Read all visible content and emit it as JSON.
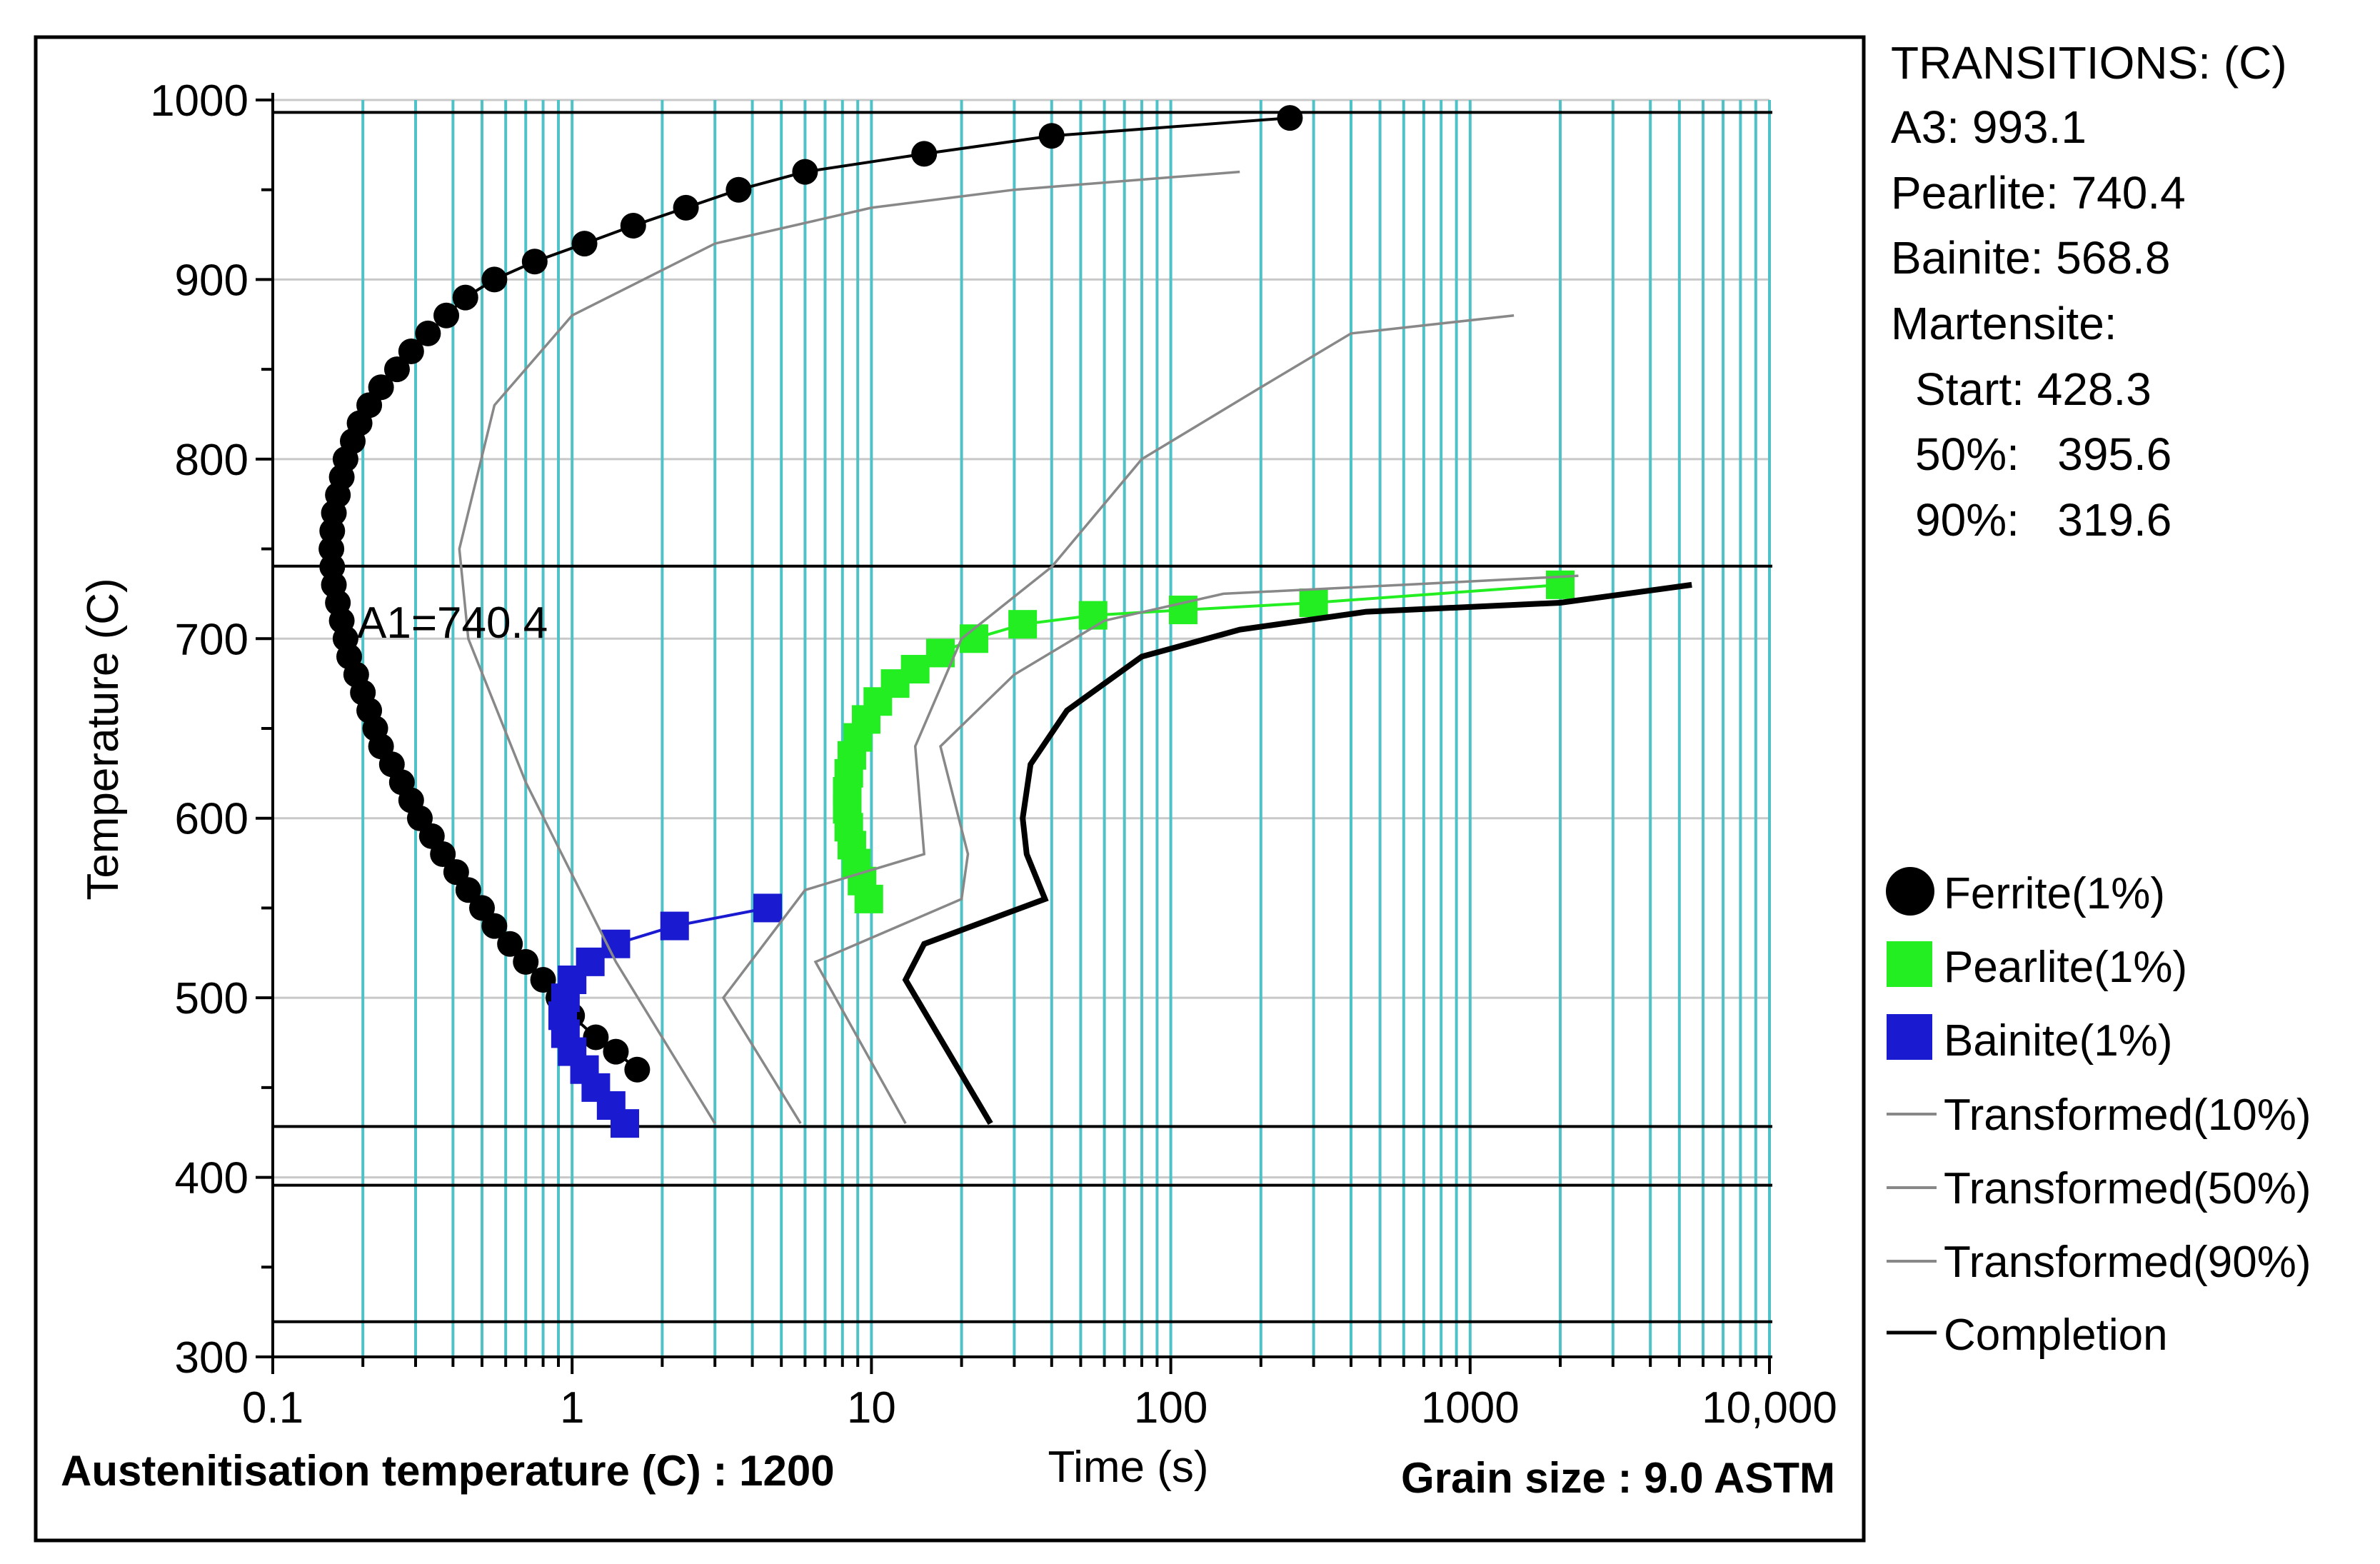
{
  "chart_data": {
    "type": "line",
    "xscale": "log",
    "xlim": [
      0.1,
      10000
    ],
    "ylim": [
      300,
      1000
    ],
    "xlabel": "Time (s)",
    "ylabel": "Temperature (C)",
    "x_ticks": [
      0.1,
      1,
      10,
      100,
      1000,
      10000
    ],
    "x_tick_labels": [
      "0.1",
      "1",
      "10",
      "100",
      "1000",
      "10,000"
    ],
    "y_ticks": [
      300,
      400,
      500,
      600,
      700,
      800,
      900,
      1000
    ],
    "y_tick_labels": [
      "300",
      "400",
      "500",
      "600",
      "700",
      "800",
      "900",
      "1000"
    ],
    "grid": true,
    "reference_lines": [
      {
        "name": "A3",
        "y": 993.1
      },
      {
        "name": "A1",
        "y": 740.4,
        "label": "A1=740.4"
      },
      {
        "name": "Ms",
        "y": 428.3
      },
      {
        "name": "M50",
        "y": 395.6
      },
      {
        "name": "M90",
        "y": 319.6
      }
    ],
    "series": [
      {
        "name": "Ferrite(1%)",
        "marker": "circle",
        "color": "#000000",
        "points": [
          [
            1.65,
            460
          ],
          [
            1.4,
            470
          ],
          [
            1.2,
            478
          ],
          [
            1.0,
            490
          ],
          [
            0.9,
            500
          ],
          [
            0.8,
            510
          ],
          [
            0.7,
            520
          ],
          [
            0.62,
            530
          ],
          [
            0.55,
            540
          ],
          [
            0.5,
            550
          ],
          [
            0.45,
            560
          ],
          [
            0.41,
            570
          ],
          [
            0.37,
            580
          ],
          [
            0.34,
            590
          ],
          [
            0.31,
            600
          ],
          [
            0.29,
            610
          ],
          [
            0.27,
            620
          ],
          [
            0.25,
            630
          ],
          [
            0.23,
            640
          ],
          [
            0.22,
            650
          ],
          [
            0.21,
            660
          ],
          [
            0.2,
            670
          ],
          [
            0.19,
            680
          ],
          [
            0.18,
            690
          ],
          [
            0.175,
            700
          ],
          [
            0.17,
            710
          ],
          [
            0.165,
            720
          ],
          [
            0.16,
            730
          ],
          [
            0.158,
            740
          ],
          [
            0.157,
            750
          ],
          [
            0.158,
            760
          ],
          [
            0.16,
            770
          ],
          [
            0.165,
            780
          ],
          [
            0.17,
            790
          ],
          [
            0.175,
            800
          ],
          [
            0.185,
            810
          ],
          [
            0.195,
            820
          ],
          [
            0.21,
            830
          ],
          [
            0.23,
            840
          ],
          [
            0.26,
            850
          ],
          [
            0.29,
            860
          ],
          [
            0.33,
            870
          ],
          [
            0.38,
            880
          ],
          [
            0.44,
            890
          ],
          [
            0.55,
            900
          ],
          [
            0.75,
            910
          ],
          [
            1.1,
            920
          ],
          [
            1.6,
            930
          ],
          [
            2.4,
            940
          ],
          [
            3.6,
            950
          ],
          [
            6,
            960
          ],
          [
            15,
            970
          ],
          [
            40,
            980
          ],
          [
            250,
            990
          ]
        ]
      },
      {
        "name": "Pearlite(1%)",
        "marker": "square",
        "color": "#22ee22",
        "points": [
          [
            9.8,
            555
          ],
          [
            9.3,
            565
          ],
          [
            8.9,
            575
          ],
          [
            8.6,
            585
          ],
          [
            8.4,
            595
          ],
          [
            8.3,
            605
          ],
          [
            8.3,
            615
          ],
          [
            8.4,
            625
          ],
          [
            8.6,
            635
          ],
          [
            9,
            645
          ],
          [
            9.6,
            655
          ],
          [
            10.5,
            665
          ],
          [
            12,
            675
          ],
          [
            14,
            683
          ],
          [
            17,
            692
          ],
          [
            22,
            700
          ],
          [
            32,
            708
          ],
          [
            55,
            713
          ],
          [
            110,
            716
          ],
          [
            300,
            720
          ],
          [
            2000,
            730
          ]
        ]
      },
      {
        "name": "Bainite(1%)",
        "marker": "square",
        "color": "#1a1ad0",
        "points": [
          [
            1.5,
            430
          ],
          [
            1.35,
            440
          ],
          [
            1.2,
            450
          ],
          [
            1.1,
            460
          ],
          [
            1.0,
            470
          ],
          [
            0.95,
            480
          ],
          [
            0.93,
            490
          ],
          [
            0.95,
            500
          ],
          [
            1.0,
            510
          ],
          [
            1.15,
            520
          ],
          [
            1.4,
            530
          ],
          [
            2.2,
            540
          ],
          [
            4.5,
            550
          ]
        ]
      },
      {
        "name": "Transformed(10%)",
        "marker": "none",
        "color": "#888888",
        "points": [
          [
            3.0,
            430
          ],
          [
            1.4,
            520
          ],
          [
            0.7,
            620
          ],
          [
            0.45,
            700
          ],
          [
            0.42,
            750
          ],
          [
            0.55,
            830
          ],
          [
            1.0,
            880
          ],
          [
            3.0,
            920
          ],
          [
            10,
            940
          ],
          [
            30,
            950
          ],
          [
            170,
            960
          ]
        ]
      },
      {
        "name": "Transformed(50%)",
        "marker": "none",
        "color": "#888888",
        "points": [
          [
            5.8,
            430
          ],
          [
            3.2,
            500
          ],
          [
            6,
            560
          ],
          [
            15,
            580
          ],
          [
            14,
            640
          ],
          [
            20,
            700
          ],
          [
            40,
            740
          ],
          [
            80,
            800
          ],
          [
            200,
            840
          ],
          [
            400,
            870
          ],
          [
            1400,
            880
          ]
        ]
      },
      {
        "name": "Transformed(90%)",
        "marker": "none",
        "color": "#888888",
        "points": [
          [
            13,
            430
          ],
          [
            6.5,
            520
          ],
          [
            20,
            555
          ],
          [
            21,
            580
          ],
          [
            17,
            640
          ],
          [
            30,
            680
          ],
          [
            60,
            710
          ],
          [
            150,
            725
          ],
          [
            600,
            730
          ],
          [
            2300,
            735
          ]
        ]
      },
      {
        "name": "Completion",
        "marker": "none",
        "color": "#000000",
        "points": [
          [
            25,
            430
          ],
          [
            13,
            510
          ],
          [
            15,
            530
          ],
          [
            38,
            555
          ],
          [
            33,
            580
          ],
          [
            32,
            600
          ],
          [
            34,
            630
          ],
          [
            45,
            660
          ],
          [
            80,
            690
          ],
          [
            170,
            705
          ],
          [
            450,
            715
          ],
          [
            2000,
            720
          ],
          [
            5500,
            730
          ]
        ]
      }
    ],
    "legend_position": "right"
  },
  "legend": [
    {
      "label": "Ferrite(1%)",
      "icon": "circle-icon",
      "color": "#000000"
    },
    {
      "label": "Pearlite(1%)",
      "icon": "square-icon",
      "color": "#22ee22"
    },
    {
      "label": "Bainite(1%)",
      "icon": "square-icon",
      "color": "#1a1ad0"
    },
    {
      "label": "Transformed(10%)",
      "icon": "line-icon",
      "color": "#888888"
    },
    {
      "label": "Transformed(50%)",
      "icon": "line-icon",
      "color": "#888888"
    },
    {
      "label": "Transformed(90%)",
      "icon": "line-icon",
      "color": "#888888"
    },
    {
      "label": "Completion",
      "icon": "line-icon",
      "color": "#000000"
    }
  ],
  "transitions": {
    "title": "TRANSITIONS: (C)",
    "a3": "A3: 993.1",
    "pearlite": "Pearlite: 740.4",
    "bainite": "Bainite: 568.8",
    "martensite": "Martensite:",
    "start": "Start: 428.3",
    "m50": "50%:   395.6",
    "m90": "90%:   319.6"
  },
  "footer": {
    "austenitisation": "Austenitisation temperature (C) : 1200",
    "grain_size": "Grain size : 9.0 ASTM"
  },
  "colors": {
    "grid_major": "#c8c8c8",
    "grid_vertical": "#4fc2c8",
    "frame": "#000000"
  }
}
